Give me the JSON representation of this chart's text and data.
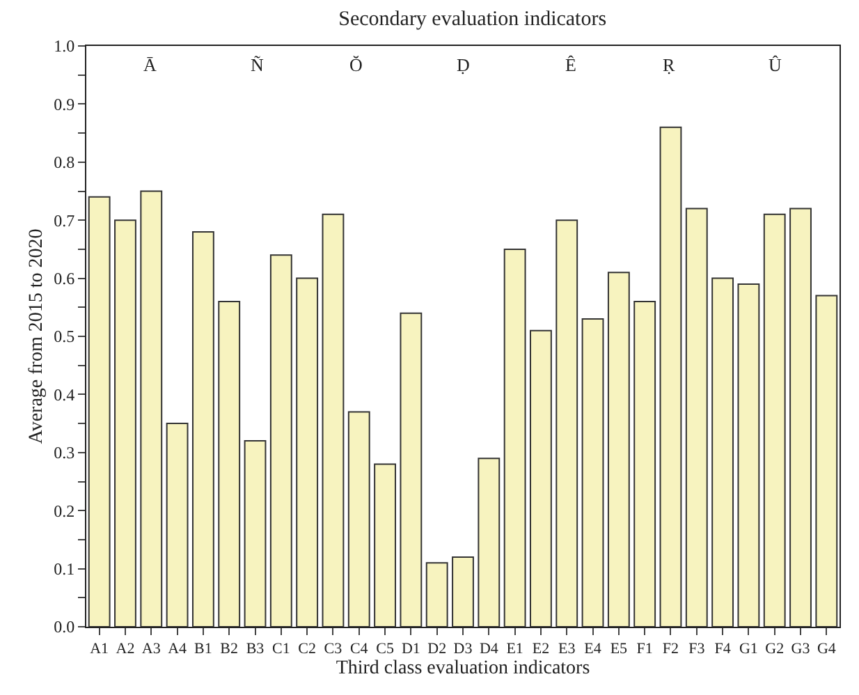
{
  "chart_data": {
    "type": "bar",
    "title": "Secondary evaluation indicators",
    "xlabel": "Third class evaluation indicators",
    "ylabel": "Average from 2015 to 2020",
    "categories": [
      "A1",
      "A2",
      "A3",
      "A4",
      "B1",
      "B2",
      "B3",
      "C1",
      "C2",
      "C3",
      "C4",
      "C5",
      "D1",
      "D2",
      "D3",
      "D4",
      "E1",
      "E2",
      "E3",
      "E4",
      "E5",
      "F1",
      "F2",
      "F3",
      "F4",
      "G1",
      "G2",
      "G3",
      "G4"
    ],
    "values": [
      0.74,
      0.7,
      0.75,
      0.35,
      0.68,
      0.56,
      0.32,
      0.64,
      0.6,
      0.71,
      0.37,
      0.28,
      0.54,
      0.11,
      0.12,
      0.29,
      0.65,
      0.51,
      0.7,
      0.53,
      0.61,
      0.56,
      0.86,
      0.72,
      0.6,
      0.59,
      0.71,
      0.72,
      0.57
    ],
    "color": "#f7f3bf",
    "ylim": [
      0,
      1.0
    ],
    "yticks": [
      {
        "value": 0,
        "label": "0.0"
      },
      {
        "value": 0.05,
        "label": null
      },
      {
        "value": 0.1,
        "label": "0.1"
      },
      {
        "value": 0.15,
        "label": null
      },
      {
        "value": 0.2,
        "label": "0.2"
      },
      {
        "value": 0.25,
        "label": null
      },
      {
        "value": 0.3,
        "label": "0.3"
      },
      {
        "value": 0.35,
        "label": null
      },
      {
        "value": 0.4,
        "label": "0.4"
      },
      {
        "value": 0.45,
        "label": null
      },
      {
        "value": 0.5,
        "label": "0.5"
      },
      {
        "value": 0.55,
        "label": null
      },
      {
        "value": 0.6,
        "label": "0.6"
      },
      {
        "value": 0.65,
        "label": null
      },
      {
        "value": 0.7,
        "label": "0.7"
      },
      {
        "value": 0.75,
        "label": null
      },
      {
        "value": 0.8,
        "label": "0.8"
      },
      {
        "value": 0.85,
        "label": null
      },
      {
        "value": 0.9,
        "label": "0.9"
      },
      {
        "value": 0.95,
        "label": null
      },
      {
        "value": 1.0,
        "label": "1.0"
      }
    ],
    "annotations": [
      "Ā",
      "Ñ",
      "Ŏ",
      "Ḍ",
      "Ê",
      "Ṛ",
      "Û"
    ]
  }
}
